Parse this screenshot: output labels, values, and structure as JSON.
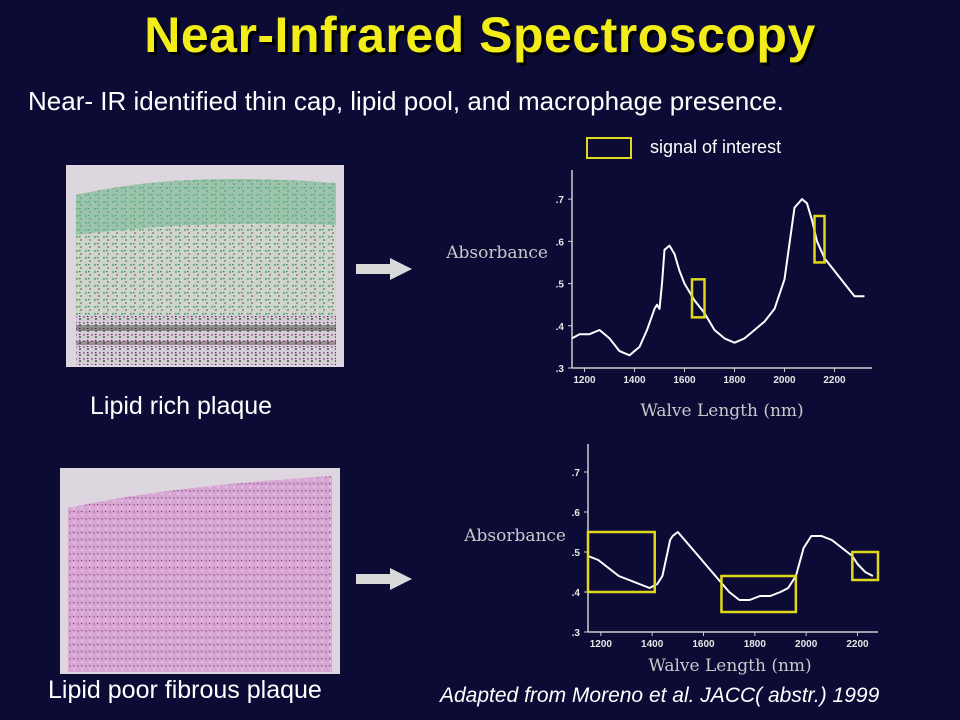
{
  "slide": {
    "title": "Near-Infrared Spectroscopy",
    "subtitle": "Near- IR identified thin cap, lipid pool, and macrophage presence.",
    "caption_top": "Lipid rich plaque",
    "caption_bottom": "Lipid poor fibrous plaque",
    "credit": "Adapted from Moreno et al. JACC( abstr.) 1999",
    "legend_label": "signal of interest",
    "colors": {
      "background": "#0c0b35",
      "title": "#f2ec18",
      "highlight_box": "#e0d81a",
      "curve": "#ffffff",
      "tissue_rich": "#7fbf9a",
      "tissue_poor": "#d9a6d6"
    },
    "icons": {
      "arrow": "right-arrow-icon"
    }
  },
  "chart_data": [
    {
      "type": "line",
      "title": "",
      "xlabel": "Walve Length (nm)",
      "ylabel": "Absorbance",
      "xlim": [
        1150,
        2350
      ],
      "ylim": [
        0.3,
        0.75
      ],
      "xticks": [
        1200,
        1400,
        1600,
        1800,
        2000,
        2200
      ],
      "yticks": [
        0.3,
        0.4,
        0.5,
        0.6,
        0.7
      ],
      "tick_labels_x": [
        "1200",
        "1400",
        "1600",
        "1800",
        "2000",
        "2200"
      ],
      "tick_labels_y": [
        ".3",
        ".4",
        ".5",
        ".6",
        ".7"
      ],
      "grid": false,
      "series": [
        {
          "x": [
            1150,
            1180,
            1220,
            1260,
            1300,
            1340,
            1380,
            1420,
            1450,
            1480,
            1490,
            1500,
            1510,
            1520,
            1540,
            1560,
            1580,
            1600,
            1640,
            1680,
            1720,
            1760,
            1800,
            1840,
            1880,
            1920,
            1960,
            2000,
            2040,
            2070,
            2090,
            2110,
            2130,
            2160,
            2200,
            2240,
            2280,
            2320
          ],
          "y": [
            0.37,
            0.38,
            0.38,
            0.39,
            0.37,
            0.34,
            0.33,
            0.35,
            0.39,
            0.44,
            0.45,
            0.44,
            0.5,
            0.58,
            0.59,
            0.57,
            0.53,
            0.5,
            0.46,
            0.43,
            0.39,
            0.37,
            0.36,
            0.37,
            0.39,
            0.41,
            0.44,
            0.51,
            0.68,
            0.7,
            0.69,
            0.65,
            0.6,
            0.56,
            0.53,
            0.5,
            0.47,
            0.47
          ]
        }
      ],
      "highlights": [
        {
          "x_range": [
            1630,
            1680
          ],
          "y_range": [
            0.42,
            0.51
          ]
        },
        {
          "x_range": [
            2120,
            2160
          ],
          "y_range": [
            0.55,
            0.66
          ]
        }
      ]
    },
    {
      "type": "line",
      "title": "",
      "xlabel": "Walve Length (nm)",
      "ylabel": "Absorbance",
      "xlim": [
        1150,
        2280
      ],
      "ylim": [
        0.3,
        0.75
      ],
      "xticks": [
        1200,
        1400,
        1600,
        1800,
        2000,
        2200
      ],
      "yticks": [
        0.3,
        0.4,
        0.5,
        0.6,
        0.7
      ],
      "tick_labels_x": [
        "1200",
        "1400",
        "1600",
        "1800",
        "2000",
        "2200"
      ],
      "tick_labels_y": [
        ".3",
        ".4",
        ".5",
        ".6",
        ".7"
      ],
      "grid": false,
      "series": [
        {
          "x": [
            1150,
            1190,
            1230,
            1270,
            1310,
            1350,
            1390,
            1420,
            1440,
            1460,
            1470,
            1480,
            1500,
            1540,
            1580,
            1620,
            1660,
            1700,
            1740,
            1780,
            1820,
            1860,
            1900,
            1930,
            1960,
            1990,
            2020,
            2060,
            2100,
            2140,
            2180,
            2200,
            2230,
            2260
          ],
          "y": [
            0.49,
            0.48,
            0.46,
            0.44,
            0.43,
            0.42,
            0.41,
            0.42,
            0.44,
            0.5,
            0.53,
            0.54,
            0.55,
            0.52,
            0.49,
            0.46,
            0.43,
            0.4,
            0.38,
            0.38,
            0.39,
            0.39,
            0.4,
            0.41,
            0.44,
            0.51,
            0.54,
            0.54,
            0.53,
            0.51,
            0.49,
            0.47,
            0.45,
            0.44
          ]
        }
      ],
      "highlights": [
        {
          "x_range": [
            1150,
            1410
          ],
          "y_range": [
            0.4,
            0.55
          ]
        },
        {
          "x_range": [
            1670,
            1960
          ],
          "y_range": [
            0.35,
            0.44
          ]
        },
        {
          "x_range": [
            2180,
            2280
          ],
          "y_range": [
            0.43,
            0.5
          ]
        }
      ]
    }
  ]
}
